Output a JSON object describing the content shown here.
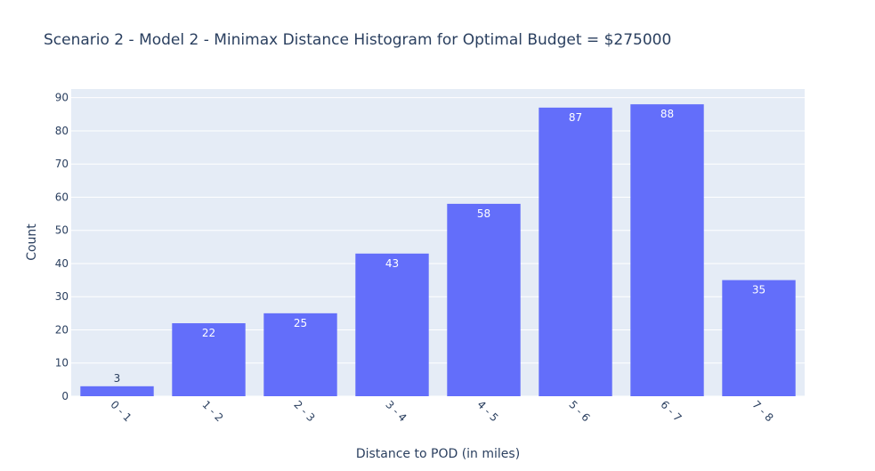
{
  "chart_data": {
    "type": "bar",
    "title": "Scenario 2 - Model 2 - Minimax Distance Histogram for Optimal Budget = $275000",
    "xlabel": "Distance to POD (in miles)",
    "ylabel": "Count",
    "categories": [
      "0 - 1",
      "1 - 2",
      "2 - 3",
      "3 - 4",
      "4 - 5",
      "5 - 6",
      "6 - 7",
      "7 - 8"
    ],
    "values": [
      3,
      22,
      25,
      43,
      58,
      87,
      88,
      35
    ],
    "ylim": [
      0,
      92.6
    ],
    "yticks": [
      0,
      10,
      20,
      30,
      40,
      50,
      60,
      70,
      80,
      90
    ],
    "grid": true,
    "bar_color": "#636efa",
    "plot_bg": "#e5ecf6"
  }
}
